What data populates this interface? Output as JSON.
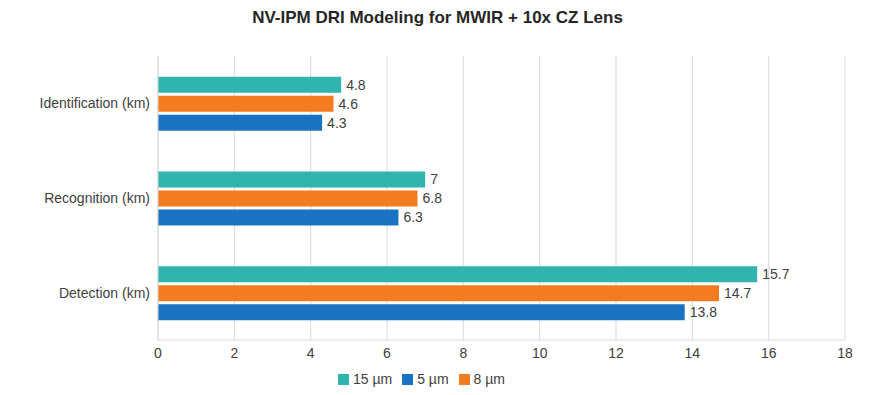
{
  "chart_data": {
    "type": "bar",
    "orientation": "horizontal",
    "title": "NV-IPM DRI Modeling for MWIR + 10x CZ Lens",
    "categories": [
      "Identification (km)",
      "Recognition (km)",
      "Detection (km)"
    ],
    "series": [
      {
        "name": "15 µm",
        "color": "#2fb5ad",
        "values": [
          4.8,
          7,
          15.7
        ]
      },
      {
        "name": "8 µm",
        "color": "#f47b20",
        "values": [
          4.6,
          6.8,
          14.7
        ]
      },
      {
        "name": "5 µm",
        "color": "#1a72c2",
        "values": [
          4.3,
          6.3,
          13.8
        ]
      }
    ],
    "xlim": [
      0,
      18
    ],
    "xticks": [
      0,
      2,
      4,
      6,
      8,
      10,
      12,
      14,
      16,
      18
    ],
    "grid": true,
    "data_labels": true,
    "legend": "bottom"
  }
}
